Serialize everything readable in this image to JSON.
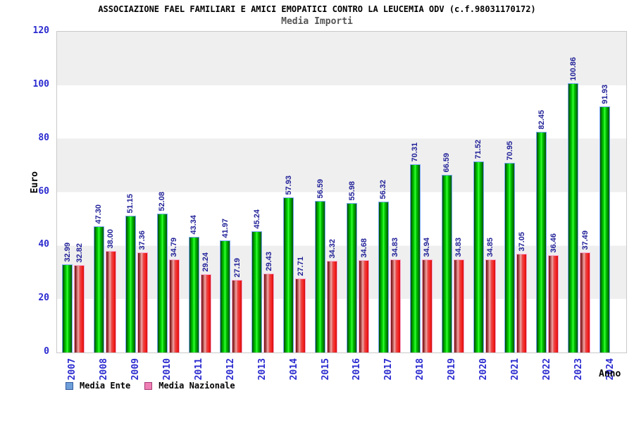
{
  "chart_data": {
    "type": "bar",
    "title": "ASSOCIAZIONE FAEL FAMILIARI E AMICI EMOPATICI CONTRO LA LEUCEMIA ODV (c.f.98031170172)",
    "subtitle": "Media Importi",
    "xlabel": "Anno",
    "ylabel": "Euro",
    "ylim": [
      0,
      120
    ],
    "yticks": [
      0,
      20,
      40,
      60,
      80,
      100,
      120
    ],
    "grid": "alternating-horizontal-bands-every-20",
    "legend_position": "bottom-left",
    "value_label_style": "rotated-90-above-each-bar, two decimals",
    "categories": [
      "2007",
      "2008",
      "2009",
      "2010",
      "2011",
      "2012",
      "2013",
      "2014",
      "2015",
      "2016",
      "2017",
      "2018",
      "2019",
      "2020",
      "2021",
      "2022",
      "2023",
      "2024"
    ],
    "series": [
      {
        "name": "Media Ente",
        "values": [
          32.99,
          47.3,
          51.15,
          52.08,
          43.34,
          41.97,
          45.24,
          57.93,
          56.59,
          55.98,
          56.32,
          70.31,
          66.59,
          71.52,
          70.95,
          82.45,
          100.86,
          91.93
        ],
        "bar_border_color": "#79a7f7",
        "bar_gradient": [
          "#014701",
          "#00a300 22%",
          "#00d800 38%",
          "#3dff3d 50%",
          "#00cc00 62%",
          "#009100 80%",
          "#015501"
        ],
        "legend_swatch_fill": "#6f9fd8",
        "legend_swatch_border": "#31589e"
      },
      {
        "name": "Media Nazionale",
        "values": [
          32.82,
          38.0,
          37.36,
          34.79,
          29.24,
          27.19,
          29.43,
          27.71,
          34.32,
          34.68,
          34.83,
          34.94,
          34.83,
          34.85,
          37.05,
          36.46,
          37.49,
          null
        ],
        "bar_border_color": "#f9a6ce",
        "bar_gradient": [
          "#6b0a0a",
          "#c86a6a 28%",
          "#efabab 38%",
          "#e84848 58%",
          "#f7211f 82%",
          "#cc1111"
        ],
        "legend_swatch_fill": "#ef7fb5",
        "legend_swatch_border": "#a43b72"
      }
    ],
    "colors": {
      "background": "#ffffff",
      "band_gray": "#efefef",
      "band_white": "#ffffff",
      "plot_border": "#c9c9c9",
      "tick_label": "#2b2bd0",
      "category_label": "#2b2bd0",
      "value_label": "#222299",
      "title": "#000000",
      "subtitle": "#555555"
    }
  }
}
